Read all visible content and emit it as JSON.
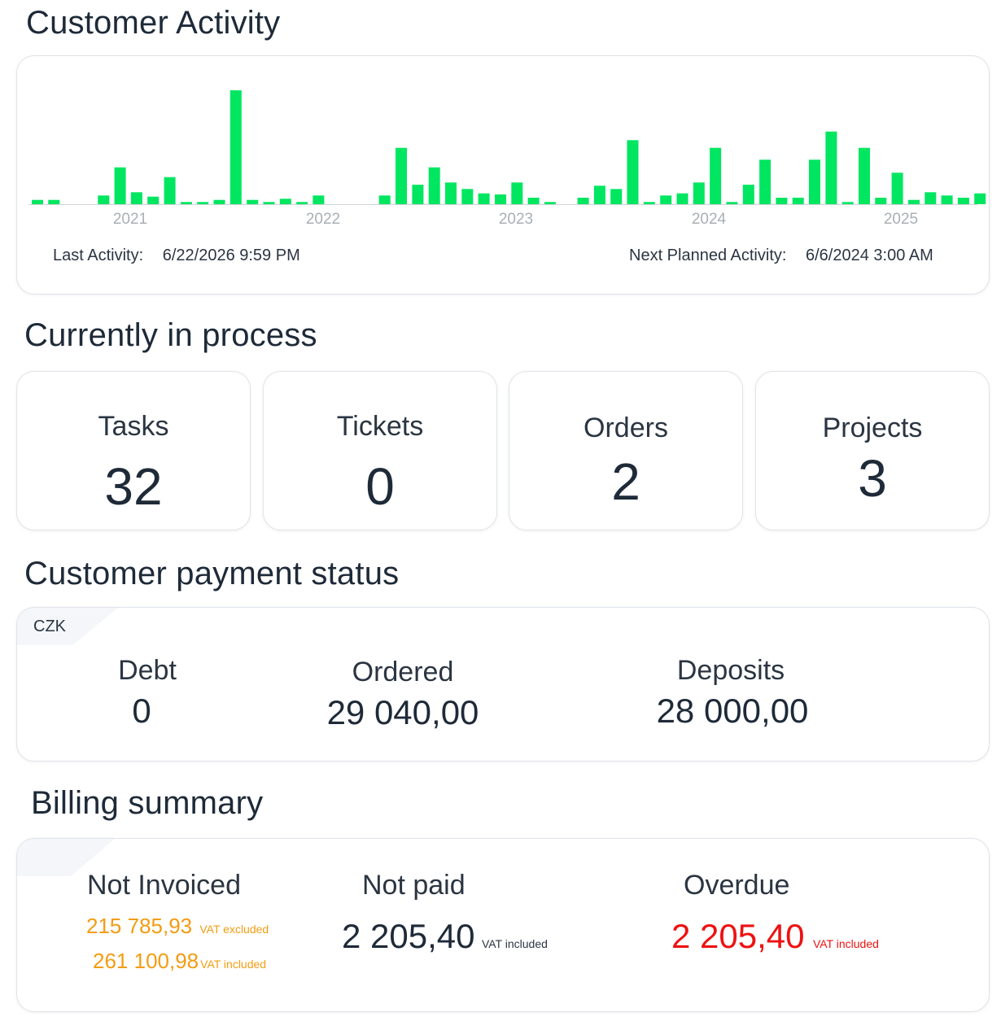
{
  "activity": {
    "title": "Customer Activity",
    "last_activity_label": "Last Activity:",
    "last_activity_value": "6/22/2026 9:59 PM",
    "next_activity_label": "Next Planned Activity:",
    "next_activity_value": "6/6/2024 3:00 AM",
    "chart_data": {
      "type": "bar",
      "bar_color": "#00e660",
      "x_tick_labels": [
        "2021",
        "2022",
        "2023",
        "2024",
        "2025"
      ],
      "grid": false,
      "values": [
        4,
        4,
        0,
        0,
        8,
        34,
        11,
        7,
        25,
        2,
        2,
        4,
        105,
        4,
        2,
        5,
        2,
        8,
        0,
        0,
        0,
        8,
        52,
        18,
        34,
        20,
        14,
        10,
        9,
        20,
        6,
        2,
        0,
        6,
        17,
        14,
        59,
        2,
        8,
        10,
        20,
        52,
        2,
        18,
        41,
        6,
        6,
        41,
        67,
        2,
        52,
        6,
        29,
        4,
        11,
        8,
        6,
        10
      ]
    }
  },
  "process": {
    "title": "Currently in process",
    "items": [
      {
        "label": "Tasks",
        "value": "32"
      },
      {
        "label": "Tickets",
        "value": "0"
      },
      {
        "label": "Orders",
        "value": "2"
      },
      {
        "label": "Projects",
        "value": "3"
      }
    ]
  },
  "payment": {
    "title": "Customer payment status",
    "currency": "CZK",
    "debt_label": "Debt",
    "debt_value": "0",
    "ordered_label": "Ordered",
    "ordered_value": "29 040,00",
    "deposits_label": "Deposits",
    "deposits_value": "28 000,00"
  },
  "billing": {
    "title": "Billing summary",
    "not_invoiced_label": "Not Invoiced",
    "not_invoiced_excl_value": "215 785,93",
    "not_invoiced_excl_note": "VAT excluded",
    "not_invoiced_incl_value": "261 100,98",
    "not_invoiced_incl_note": "VAT included",
    "not_paid_label": "Not paid",
    "not_paid_value": "2 205,40",
    "not_paid_note": "VAT included",
    "overdue_label": "Overdue",
    "overdue_value": "2 205,40",
    "overdue_note": "VAT included",
    "colors": {
      "warning": "#f39c12",
      "danger": "#ee1111"
    }
  }
}
